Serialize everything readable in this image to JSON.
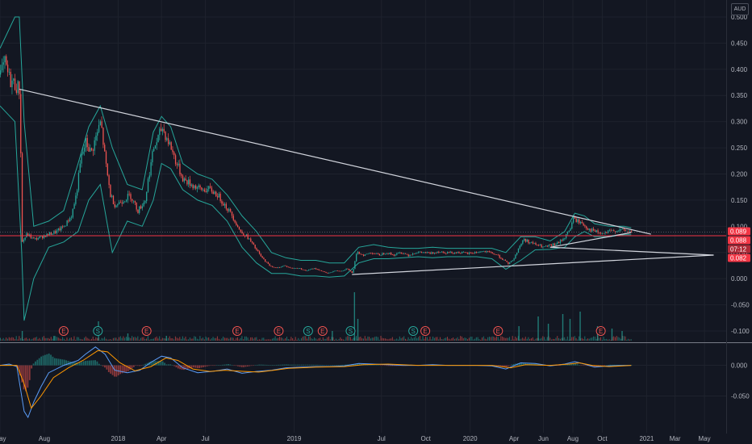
{
  "currency": "AUD",
  "colors": {
    "background": "#131722",
    "grid": "#1e222d",
    "price_line": "#f23645",
    "band": "#26a69a",
    "candle_up": "#26a69a",
    "candle_down": "#ef5350",
    "trendline": "#d1d4dc",
    "macd": "#5b9cf6",
    "signal": "#ff9800"
  },
  "chart_data": {
    "type": "line",
    "price_axis": {
      "ylim": [
        -0.12,
        0.52
      ],
      "ticks": [
        "0.500",
        "0.450",
        "0.400",
        "0.350",
        "0.300",
        "0.250",
        "0.200",
        "0.150",
        "0.100",
        "0.050",
        "0.000",
        "-0.050",
        "-0.100"
      ]
    },
    "oscillator_axis": {
      "ylim": [
        -0.11,
        0.035
      ],
      "ticks": [
        "0.000",
        "-0.050"
      ]
    },
    "time_axis": {
      "range": [
        "2017-05-01",
        "2021-06-15"
      ],
      "ticks": [
        {
          "date": "2017-05-01",
          "label": "May"
        },
        {
          "date": "2017-08-01",
          "label": "Aug"
        },
        {
          "date": "2018-01-01",
          "label": "2018"
        },
        {
          "date": "2018-04-01",
          "label": "Apr"
        },
        {
          "date": "2018-07-01",
          "label": "Jul"
        },
        {
          "date": "2019-01-01",
          "label": "2019"
        },
        {
          "date": "2019-07-01",
          "label": "Jul"
        },
        {
          "date": "2019-10-01",
          "label": "Oct"
        },
        {
          "date": "2020-01-01",
          "label": "2020"
        },
        {
          "date": "2020-04-01",
          "label": "Apr"
        },
        {
          "date": "2020-06-01",
          "label": "Jun"
        },
        {
          "date": "2020-08-01",
          "label": "Aug"
        },
        {
          "date": "2020-10-01",
          "label": "Oct"
        },
        {
          "date": "2021-01-01",
          "label": "2021"
        },
        {
          "date": "2021-03-01",
          "label": "Mar"
        },
        {
          "date": "2021-05-01",
          "label": "May"
        }
      ]
    },
    "price_series": [
      [
        "2017-05-01",
        0.39
      ],
      [
        "2017-05-10",
        0.41
      ],
      [
        "2017-05-20",
        0.38
      ],
      [
        "2017-06-01",
        0.37
      ],
      [
        "2017-06-10",
        0.36
      ],
      [
        "2017-06-15",
        0.07
      ],
      [
        "2017-06-25",
        0.085
      ],
      [
        "2017-07-10",
        0.075
      ],
      [
        "2017-07-25",
        0.08
      ],
      [
        "2017-08-10",
        0.085
      ],
      [
        "2017-08-25",
        0.09
      ],
      [
        "2017-09-10",
        0.1
      ],
      [
        "2017-09-25",
        0.12
      ],
      [
        "2017-10-05",
        0.16
      ],
      [
        "2017-10-15",
        0.23
      ],
      [
        "2017-10-25",
        0.26
      ],
      [
        "2017-11-05",
        0.24
      ],
      [
        "2017-11-15",
        0.27
      ],
      [
        "2017-11-25",
        0.3
      ],
      [
        "2017-12-05",
        0.22
      ],
      [
        "2017-12-15",
        0.16
      ],
      [
        "2017-12-25",
        0.14
      ],
      [
        "2018-01-10",
        0.15
      ],
      [
        "2018-01-25",
        0.16
      ],
      [
        "2018-02-10",
        0.13
      ],
      [
        "2018-02-25",
        0.15
      ],
      [
        "2018-03-05",
        0.2
      ],
      [
        "2018-03-15",
        0.25
      ],
      [
        "2018-03-25",
        0.27
      ],
      [
        "2018-04-01",
        0.29
      ],
      [
        "2018-04-10",
        0.27
      ],
      [
        "2018-04-20",
        0.25
      ],
      [
        "2018-05-01",
        0.22
      ],
      [
        "2018-05-15",
        0.19
      ],
      [
        "2018-06-01",
        0.18
      ],
      [
        "2018-06-20",
        0.17
      ],
      [
        "2018-07-10",
        0.17
      ],
      [
        "2018-07-25",
        0.16
      ],
      [
        "2018-08-10",
        0.14
      ],
      [
        "2018-08-25",
        0.12
      ],
      [
        "2018-09-10",
        0.09
      ],
      [
        "2018-09-25",
        0.08
      ],
      [
        "2018-10-10",
        0.06
      ],
      [
        "2018-10-25",
        0.04
      ],
      [
        "2018-11-10",
        0.025
      ],
      [
        "2018-11-25",
        0.02
      ],
      [
        "2018-12-10",
        0.025
      ],
      [
        "2018-12-25",
        0.02
      ],
      [
        "2019-01-10",
        0.02
      ],
      [
        "2019-01-25",
        0.015
      ],
      [
        "2019-02-10",
        0.02
      ],
      [
        "2019-02-25",
        0.015
      ],
      [
        "2019-03-10",
        0.01
      ],
      [
        "2019-03-25",
        0.015
      ],
      [
        "2019-04-10",
        0.015
      ],
      [
        "2019-04-20",
        0.02
      ],
      [
        "2019-05-01",
        0.01
      ],
      [
        "2019-05-10",
        0.05
      ],
      [
        "2019-05-25",
        0.045
      ],
      [
        "2019-06-10",
        0.05
      ],
      [
        "2019-06-25",
        0.045
      ],
      [
        "2019-07-10",
        0.05
      ],
      [
        "2019-07-25",
        0.045
      ],
      [
        "2019-08-10",
        0.05
      ],
      [
        "2019-08-25",
        0.045
      ],
      [
        "2019-09-10",
        0.05
      ],
      [
        "2019-09-25",
        0.05
      ],
      [
        "2019-10-10",
        0.048
      ],
      [
        "2019-10-25",
        0.052
      ],
      [
        "2019-11-10",
        0.05
      ],
      [
        "2019-11-25",
        0.05
      ],
      [
        "2019-12-10",
        0.05
      ],
      [
        "2019-12-25",
        0.048
      ],
      [
        "2020-01-10",
        0.05
      ],
      [
        "2020-01-25",
        0.052
      ],
      [
        "2020-02-10",
        0.05
      ],
      [
        "2020-02-25",
        0.045
      ],
      [
        "2020-03-10",
        0.035
      ],
      [
        "2020-03-20",
        0.028
      ],
      [
        "2020-04-01",
        0.04
      ],
      [
        "2020-04-10",
        0.06
      ],
      [
        "2020-04-20",
        0.075
      ],
      [
        "2020-05-01",
        0.07
      ],
      [
        "2020-05-15",
        0.065
      ],
      [
        "2020-06-01",
        0.06
      ],
      [
        "2020-06-15",
        0.063
      ],
      [
        "2020-07-01",
        0.068
      ],
      [
        "2020-07-15",
        0.08
      ],
      [
        "2020-07-25",
        0.095
      ],
      [
        "2020-08-01",
        0.115
      ],
      [
        "2020-08-10",
        0.11
      ],
      [
        "2020-08-20",
        0.105
      ],
      [
        "2020-09-01",
        0.095
      ],
      [
        "2020-09-15",
        0.09
      ],
      [
        "2020-10-01",
        0.085
      ],
      [
        "2020-10-15",
        0.09
      ],
      [
        "2020-11-01",
        0.093
      ],
      [
        "2020-11-15",
        0.092
      ],
      [
        "2020-11-30",
        0.089
      ]
    ],
    "band_upper": [
      [
        "2017-05-01",
        0.44
      ],
      [
        "2017-06-01",
        0.5
      ],
      [
        "2017-06-10",
        0.5
      ],
      [
        "2017-06-20",
        0.3
      ],
      [
        "2017-07-10",
        0.1
      ],
      [
        "2017-08-10",
        0.11
      ],
      [
        "2017-09-10",
        0.13
      ],
      [
        "2017-10-10",
        0.22
      ],
      [
        "2017-11-01",
        0.29
      ],
      [
        "2017-11-25",
        0.33
      ],
      [
        "2017-12-20",
        0.25
      ],
      [
        "2018-01-20",
        0.18
      ],
      [
        "2018-02-20",
        0.17
      ],
      [
        "2018-03-15",
        0.28
      ],
      [
        "2018-04-01",
        0.31
      ],
      [
        "2018-04-20",
        0.29
      ],
      [
        "2018-05-15",
        0.22
      ],
      [
        "2018-06-15",
        0.2
      ],
      [
        "2018-07-15",
        0.19
      ],
      [
        "2018-08-15",
        0.16
      ],
      [
        "2018-09-15",
        0.12
      ],
      [
        "2018-10-15",
        0.09
      ],
      [
        "2018-11-15",
        0.05
      ],
      [
        "2018-12-15",
        0.04
      ],
      [
        "2019-01-15",
        0.035
      ],
      [
        "2019-02-15",
        0.035
      ],
      [
        "2019-03-15",
        0.03
      ],
      [
        "2019-04-15",
        0.03
      ],
      [
        "2019-05-15",
        0.06
      ],
      [
        "2019-06-15",
        0.065
      ],
      [
        "2019-07-15",
        0.06
      ],
      [
        "2019-08-15",
        0.058
      ],
      [
        "2019-09-15",
        0.058
      ],
      [
        "2019-10-15",
        0.06
      ],
      [
        "2019-11-15",
        0.058
      ],
      [
        "2019-12-15",
        0.058
      ],
      [
        "2020-01-15",
        0.058
      ],
      [
        "2020-02-15",
        0.058
      ],
      [
        "2020-03-15",
        0.05
      ],
      [
        "2020-04-15",
        0.08
      ],
      [
        "2020-05-15",
        0.08
      ],
      [
        "2020-06-15",
        0.072
      ],
      [
        "2020-07-15",
        0.09
      ],
      [
        "2020-08-05",
        0.125
      ],
      [
        "2020-08-25",
        0.12
      ],
      [
        "2020-09-15",
        0.105
      ],
      [
        "2020-10-15",
        0.1
      ],
      [
        "2020-11-15",
        0.1
      ],
      [
        "2020-11-30",
        0.097
      ]
    ],
    "band_lower": [
      [
        "2017-05-01",
        0.33
      ],
      [
        "2017-06-01",
        0.3
      ],
      [
        "2017-06-15",
        0.05
      ],
      [
        "2017-06-20",
        -0.08
      ],
      [
        "2017-07-10",
        0.0
      ],
      [
        "2017-08-10",
        0.06
      ],
      [
        "2017-09-10",
        0.07
      ],
      [
        "2017-10-10",
        0.09
      ],
      [
        "2017-11-01",
        0.15
      ],
      [
        "2017-11-25",
        0.18
      ],
      [
        "2017-12-20",
        0.05
      ],
      [
        "2018-01-20",
        0.11
      ],
      [
        "2018-02-20",
        0.1
      ],
      [
        "2018-03-15",
        0.15
      ],
      [
        "2018-04-01",
        0.22
      ],
      [
        "2018-04-20",
        0.21
      ],
      [
        "2018-05-15",
        0.17
      ],
      [
        "2018-06-15",
        0.15
      ],
      [
        "2018-07-15",
        0.14
      ],
      [
        "2018-08-15",
        0.11
      ],
      [
        "2018-09-15",
        0.06
      ],
      [
        "2018-10-15",
        0.03
      ],
      [
        "2018-11-15",
        0.01
      ],
      [
        "2018-12-15",
        0.01
      ],
      [
        "2019-01-15",
        0.005
      ],
      [
        "2019-02-15",
        0.005
      ],
      [
        "2019-03-15",
        0.003
      ],
      [
        "2019-04-15",
        0.005
      ],
      [
        "2019-05-15",
        0.03
      ],
      [
        "2019-06-15",
        0.038
      ],
      [
        "2019-07-15",
        0.038
      ],
      [
        "2019-08-15",
        0.04
      ],
      [
        "2019-09-15",
        0.042
      ],
      [
        "2019-10-15",
        0.04
      ],
      [
        "2019-11-15",
        0.042
      ],
      [
        "2019-12-15",
        0.042
      ],
      [
        "2020-01-15",
        0.042
      ],
      [
        "2020-02-15",
        0.038
      ],
      [
        "2020-03-15",
        0.018
      ],
      [
        "2020-04-15",
        0.035
      ],
      [
        "2020-05-15",
        0.055
      ],
      [
        "2020-06-15",
        0.056
      ],
      [
        "2020-07-15",
        0.06
      ],
      [
        "2020-08-05",
        0.08
      ],
      [
        "2020-08-25",
        0.09
      ],
      [
        "2020-09-15",
        0.08
      ],
      [
        "2020-10-15",
        0.08
      ],
      [
        "2020-11-15",
        0.084
      ],
      [
        "2020-11-30",
        0.084
      ]
    ],
    "trendlines": [
      {
        "from": [
          "2017-06-10",
          0.362
        ],
        "to": [
          "2021-01-10",
          0.085
        ]
      },
      {
        "from": [
          "2019-05-01",
          0.008
        ],
        "to": [
          "2021-05-20",
          0.045
        ]
      },
      {
        "from": [
          "2020-06-15",
          0.06
        ],
        "to": [
          "2021-05-20",
          0.045
        ]
      },
      {
        "from": [
          "2020-06-15",
          0.06
        ],
        "to": [
          "2020-11-30",
          0.088
        ]
      }
    ],
    "horizontal_line": 0.082,
    "price_tags": [
      {
        "label": "0.089",
        "value": 0.089
      },
      {
        "label": "0.088",
        "value": 0.088
      },
      {
        "label": "07:12",
        "value": 0.082
      },
      {
        "label": "0.082",
        "value": 0.082
      }
    ],
    "volume_spikes": [
      [
        "2017-06-15",
        0.2
      ],
      [
        "2017-08-20",
        0.1
      ],
      [
        "2017-11-20",
        0.4
      ],
      [
        "2018-01-20",
        0.15
      ],
      [
        "2018-04-10",
        0.1
      ],
      [
        "2019-03-20",
        0.2
      ],
      [
        "2019-05-05",
        1.0
      ],
      [
        "2019-05-12",
        0.45
      ],
      [
        "2020-04-10",
        0.3
      ],
      [
        "2020-05-20",
        0.5
      ],
      [
        "2020-06-10",
        0.35
      ],
      [
        "2020-07-10",
        0.55
      ],
      [
        "2020-07-25",
        0.45
      ],
      [
        "2020-08-15",
        0.6
      ],
      [
        "2020-09-20",
        0.3
      ],
      [
        "2020-10-20",
        0.25
      ],
      [
        "2020-11-10",
        0.2
      ]
    ],
    "events": [
      {
        "date": "2017-09-10",
        "type": "E"
      },
      {
        "date": "2017-11-20",
        "type": "S"
      },
      {
        "date": "2018-03-01",
        "type": "E"
      },
      {
        "date": "2018-09-05",
        "type": "E"
      },
      {
        "date": "2018-11-30",
        "type": "E"
      },
      {
        "date": "2019-01-30",
        "type": "S"
      },
      {
        "date": "2019-03-01",
        "type": "E"
      },
      {
        "date": "2019-04-28",
        "type": "S"
      },
      {
        "date": "2019-09-05",
        "type": "S"
      },
      {
        "date": "2019-09-30",
        "type": "E"
      },
      {
        "date": "2020-02-28",
        "type": "E"
      },
      {
        "date": "2020-09-28",
        "type": "E"
      }
    ],
    "macd": [
      [
        "2017-05-01",
        0.0
      ],
      [
        "2017-05-20",
        0.002
      ],
      [
        "2017-06-05",
        -0.002
      ],
      [
        "2017-06-20",
        -0.075
      ],
      [
        "2017-06-28",
        -0.085
      ],
      [
        "2017-07-10",
        -0.06
      ],
      [
        "2017-07-25",
        -0.035
      ],
      [
        "2017-08-10",
        -0.012
      ],
      [
        "2017-09-10",
        0.0
      ],
      [
        "2017-10-10",
        0.008
      ],
      [
        "2017-10-25",
        0.018
      ],
      [
        "2017-11-15",
        0.03
      ],
      [
        "2017-12-05",
        0.018
      ],
      [
        "2017-12-25",
        -0.008
      ],
      [
        "2018-01-20",
        -0.012
      ],
      [
        "2018-02-15",
        -0.008
      ],
      [
        "2018-03-10",
        0.005
      ],
      [
        "2018-04-01",
        0.015
      ],
      [
        "2018-04-20",
        0.012
      ],
      [
        "2018-05-15",
        -0.004
      ],
      [
        "2018-06-15",
        -0.012
      ],
      [
        "2018-07-15",
        -0.01
      ],
      [
        "2018-08-15",
        -0.006
      ],
      [
        "2018-09-15",
        -0.013
      ],
      [
        "2018-10-15",
        -0.01
      ],
      [
        "2018-11-15",
        -0.008
      ],
      [
        "2018-12-15",
        -0.004
      ],
      [
        "2019-01-15",
        -0.003
      ],
      [
        "2019-02-15",
        -0.002
      ],
      [
        "2019-03-15",
        -0.002
      ],
      [
        "2019-04-15",
        -0.001
      ],
      [
        "2019-05-15",
        0.003
      ],
      [
        "2019-06-15",
        0.002
      ],
      [
        "2019-07-15",
        0.001
      ],
      [
        "2019-08-15",
        0.0
      ],
      [
        "2019-09-15",
        0.0
      ],
      [
        "2019-10-15",
        0.001
      ],
      [
        "2019-11-15",
        0.0
      ],
      [
        "2019-12-15",
        0.0
      ],
      [
        "2020-01-15",
        0.0
      ],
      [
        "2020-02-15",
        -0.001
      ],
      [
        "2020-03-15",
        -0.006
      ],
      [
        "2020-04-15",
        0.004
      ],
      [
        "2020-05-15",
        0.003
      ],
      [
        "2020-06-15",
        -0.001
      ],
      [
        "2020-07-15",
        0.002
      ],
      [
        "2020-08-05",
        0.006
      ],
      [
        "2020-08-25",
        0.002
      ],
      [
        "2020-09-15",
        -0.003
      ],
      [
        "2020-10-15",
        -0.001
      ],
      [
        "2020-11-15",
        0.0
      ],
      [
        "2020-11-30",
        0.0
      ]
    ],
    "signal": [
      [
        "2017-05-01",
        0.0
      ],
      [
        "2017-06-05",
        0.0
      ],
      [
        "2017-06-20",
        -0.03
      ],
      [
        "2017-07-05",
        -0.07
      ],
      [
        "2017-07-25",
        -0.05
      ],
      [
        "2017-08-20",
        -0.02
      ],
      [
        "2017-09-20",
        -0.004
      ],
      [
        "2017-10-20",
        0.008
      ],
      [
        "2017-11-20",
        0.024
      ],
      [
        "2017-12-10",
        0.022
      ],
      [
        "2018-01-05",
        0.004
      ],
      [
        "2018-02-05",
        -0.009
      ],
      [
        "2018-03-10",
        -0.002
      ],
      [
        "2018-04-10",
        0.012
      ],
      [
        "2018-05-05",
        0.008
      ],
      [
        "2018-06-05",
        -0.006
      ],
      [
        "2018-07-10",
        -0.01
      ],
      [
        "2018-08-10",
        -0.008
      ],
      [
        "2018-09-20",
        -0.01
      ],
      [
        "2018-10-20",
        -0.011
      ],
      [
        "2018-11-20",
        -0.008
      ],
      [
        "2018-12-20",
        -0.005
      ],
      [
        "2019-02-15",
        -0.003
      ],
      [
        "2019-04-15",
        -0.002
      ],
      [
        "2019-05-25",
        0.001
      ],
      [
        "2019-07-15",
        0.002
      ],
      [
        "2019-09-15",
        0.0
      ],
      [
        "2019-12-15",
        0.0
      ],
      [
        "2020-02-15",
        0.0
      ],
      [
        "2020-03-25",
        -0.004
      ],
      [
        "2020-04-25",
        0.001
      ],
      [
        "2020-06-15",
        0.0
      ],
      [
        "2020-07-25",
        0.002
      ],
      [
        "2020-08-15",
        0.004
      ],
      [
        "2020-09-10",
        0.0
      ],
      [
        "2020-10-15",
        -0.002
      ],
      [
        "2020-11-30",
        0.0
      ]
    ]
  }
}
